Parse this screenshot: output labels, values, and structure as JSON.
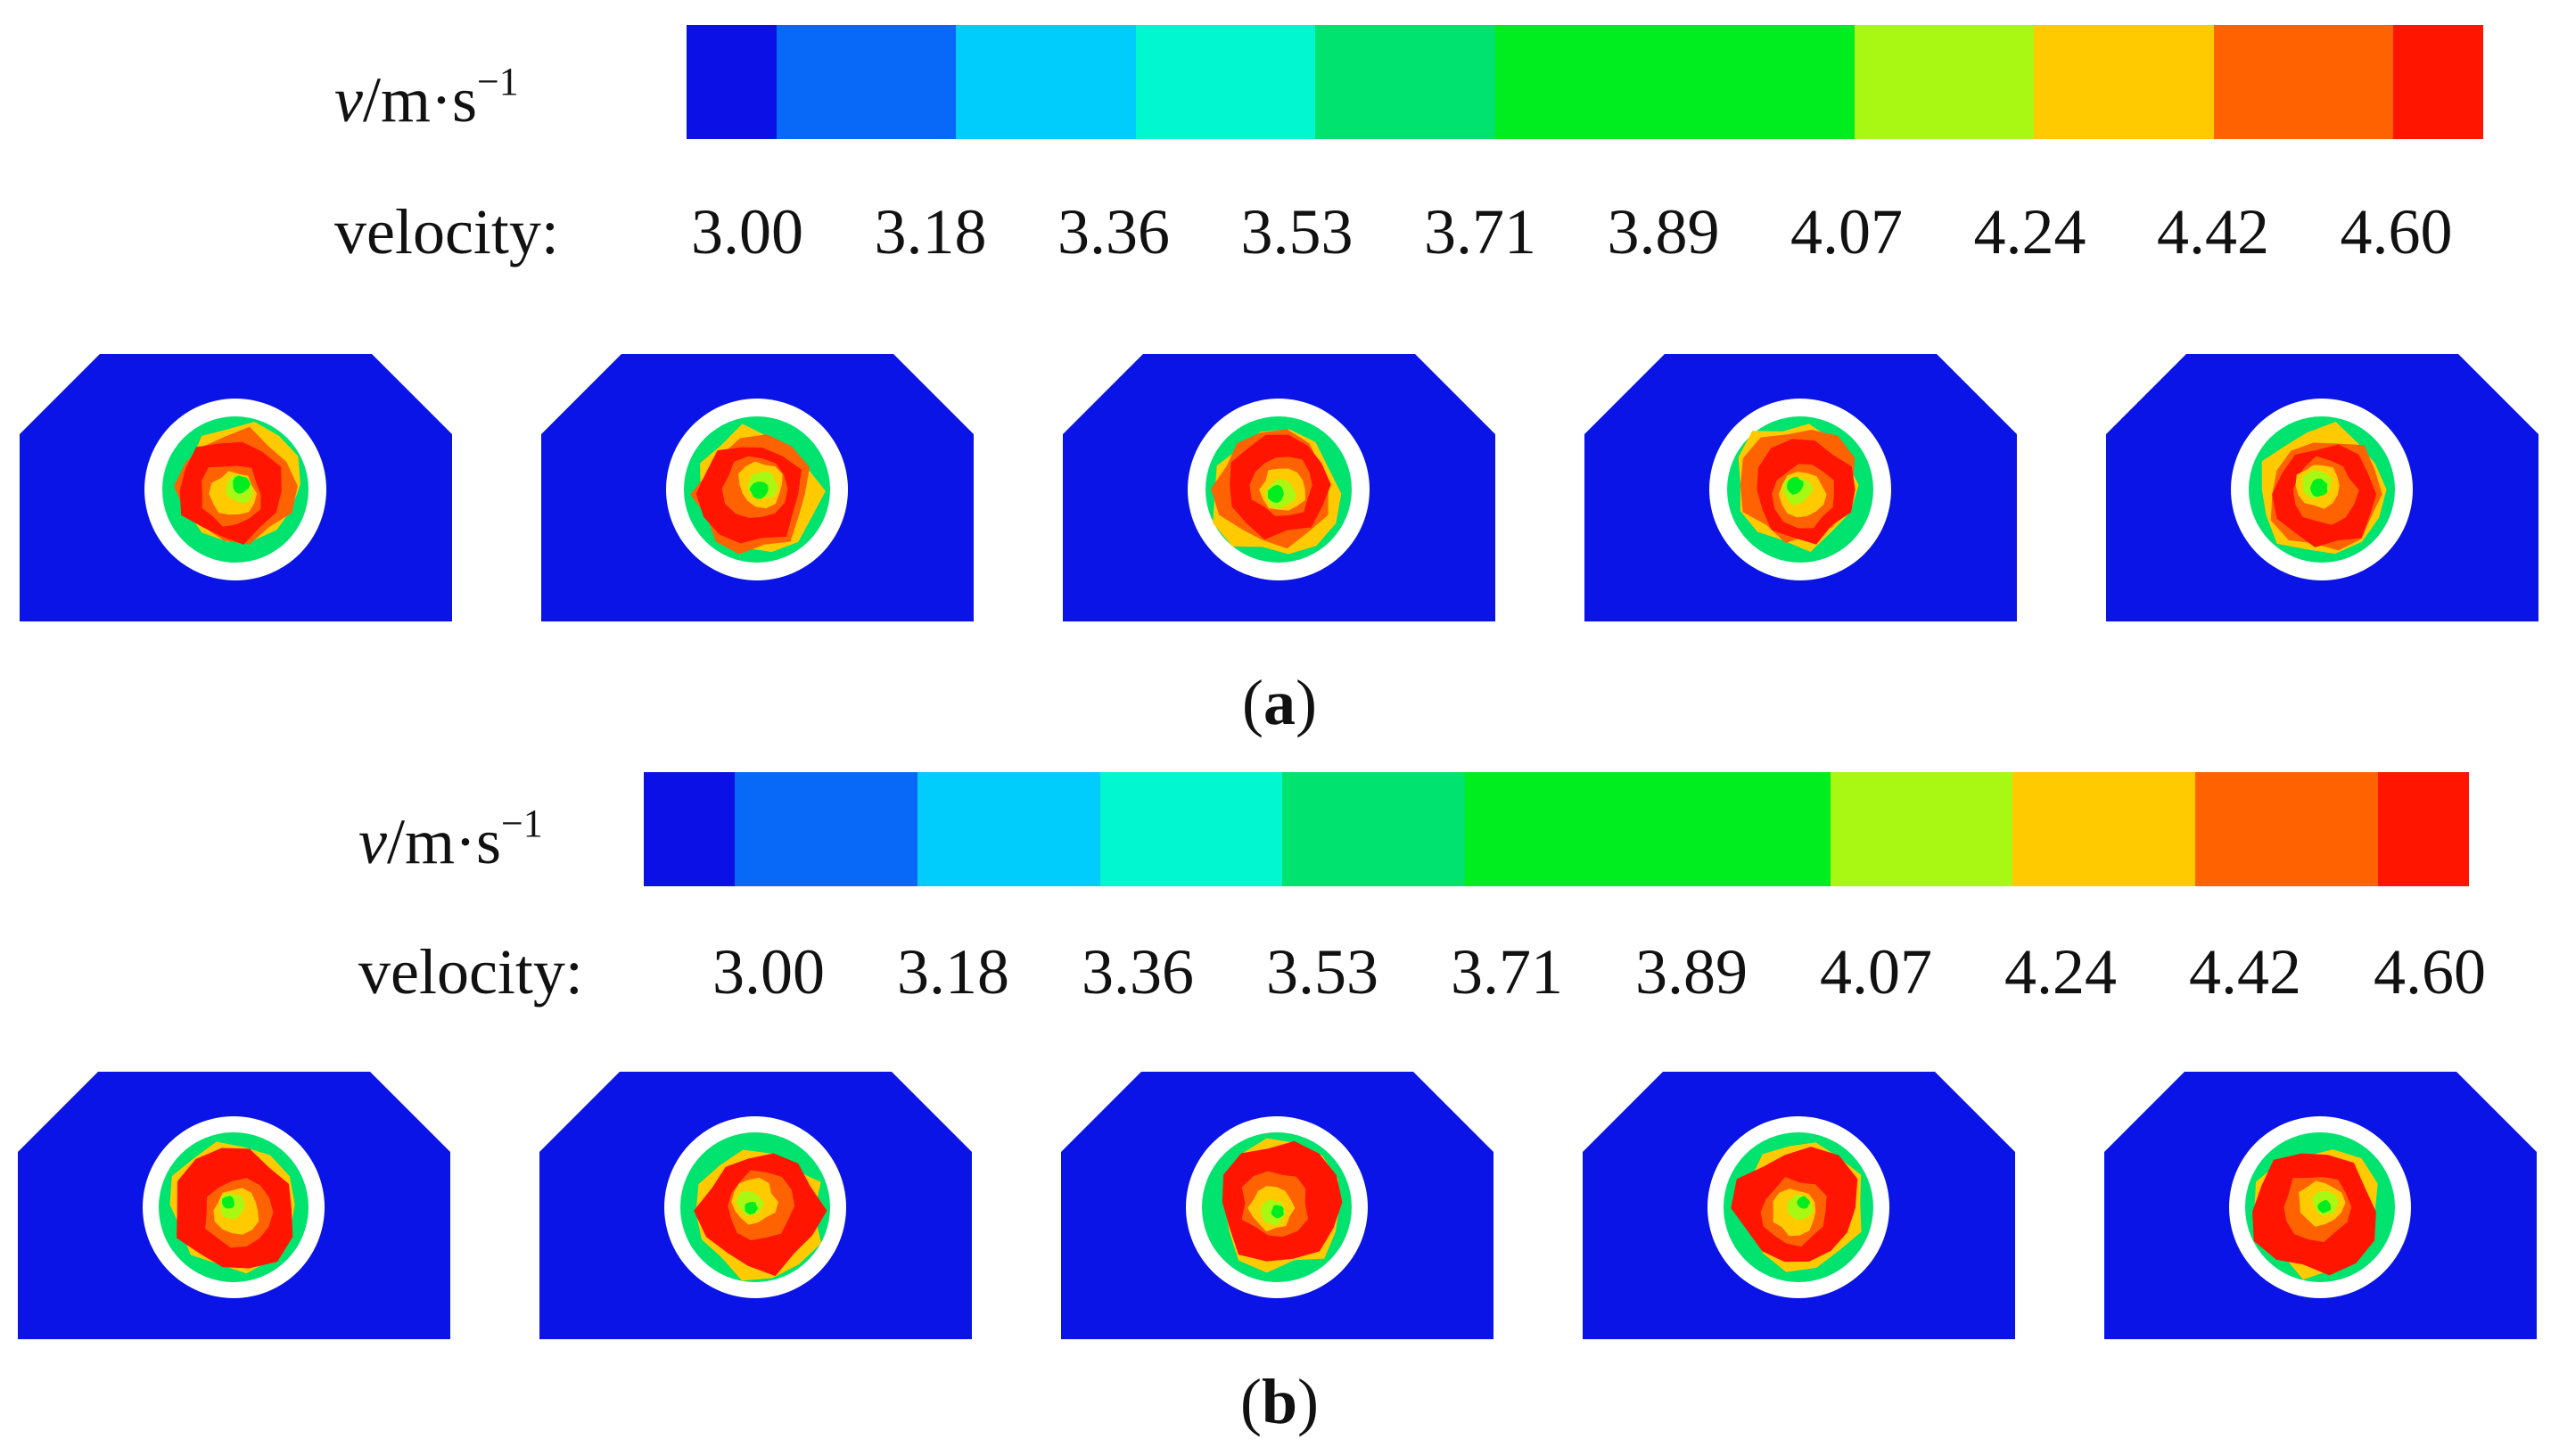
{
  "panels": [
    {
      "caption": "a",
      "unit_symbol": "v",
      "unit_rest": "/m·s",
      "unit_exp": "−1",
      "velocity_label": "velocity:",
      "ticks": [
        "3.00",
        "3.18",
        "3.36",
        "3.53",
        "3.71",
        "3.89",
        "4.07",
        "4.24",
        "4.42",
        "4.60"
      ],
      "color_bands": [
        {
          "color": "#0b10e6",
          "weight": 1
        },
        {
          "color": "#0868f8",
          "weight": 2
        },
        {
          "color": "#00cdfc",
          "weight": 2
        },
        {
          "color": "#00f7cf",
          "weight": 2
        },
        {
          "color": "#00e36e",
          "weight": 2
        },
        {
          "color": "#00ee1f",
          "weight": 4
        },
        {
          "color": "#a9f813",
          "weight": 2
        },
        {
          "color": "#ffcb00",
          "weight": 2
        },
        {
          "color": "#ff6200",
          "weight": 2
        },
        {
          "color": "#ff1500",
          "weight": 1
        }
      ],
      "sections": 5
    },
    {
      "caption": "b",
      "unit_symbol": "v",
      "unit_rest": "/m·s",
      "unit_exp": "−1",
      "velocity_label": "velocity:",
      "ticks": [
        "3.00",
        "3.18",
        "3.36",
        "3.53",
        "3.71",
        "3.89",
        "4.07",
        "4.24",
        "4.42",
        "4.60"
      ],
      "color_bands": [
        {
          "color": "#0b10e6",
          "weight": 1
        },
        {
          "color": "#0868f8",
          "weight": 2
        },
        {
          "color": "#00cdfc",
          "weight": 2
        },
        {
          "color": "#00f7cf",
          "weight": 2
        },
        {
          "color": "#00e36e",
          "weight": 2
        },
        {
          "color": "#00ee1f",
          "weight": 4
        },
        {
          "color": "#a9f813",
          "weight": 2
        },
        {
          "color": "#ffcb00",
          "weight": 2
        },
        {
          "color": "#ff6200",
          "weight": 2
        },
        {
          "color": "#ff1500",
          "weight": 1
        }
      ],
      "sections": 5
    }
  ],
  "colors": {
    "section_fill": "#0a14e6",
    "gap_ring": "#ffffff",
    "low": "#00e36e",
    "mid": "#ffcb00",
    "mid_orange": "#ff6200",
    "high": "#ff1500",
    "core": "#00ee1f",
    "core_light": "#a9f813"
  }
}
